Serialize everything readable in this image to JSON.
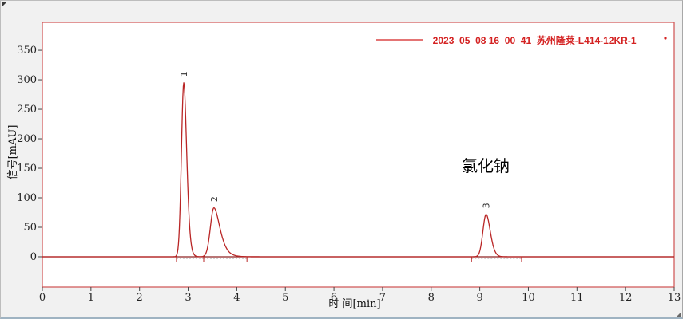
{
  "window": {
    "background": "#f1f1f1"
  },
  "chart_data": {
    "type": "line",
    "title": "",
    "xlabel": "时 间[min]",
    "ylabel": "信号[mAU]",
    "xlim": [
      0,
      13
    ],
    "ylim": [
      -51.4,
      397.4
    ],
    "grid": false,
    "x_ticks": [
      0,
      1,
      2,
      3,
      4,
      5,
      6,
      7,
      8,
      9,
      10,
      11,
      12,
      13
    ],
    "y_ticks": [
      0,
      50,
      100,
      150,
      200,
      250,
      300,
      350
    ],
    "legend": {
      "position": "top-right",
      "label": "_2023_05_08 16_00_41_苏州隆莱-L414-12KR-1"
    },
    "annotation": {
      "text": "氯化钠"
    },
    "peaks": [
      {
        "label": "1",
        "rt_min": 2.91,
        "height_mau": 295,
        "sigma_l": 0.048,
        "sigma_r": 0.055,
        "tail": 0.08
      },
      {
        "label": "2",
        "rt_min": 3.53,
        "height_mau": 83,
        "sigma_l": 0.072,
        "sigma_r": 0.105,
        "tail": 0.13
      },
      {
        "label": "3",
        "rt_min": 9.13,
        "height_mau": 72,
        "sigma_l": 0.065,
        "sigma_r": 0.08,
        "tail": 0.06
      }
    ],
    "integration_marks_min": [
      {
        "start": 2.76,
        "end": 3.32
      },
      {
        "start": 3.32,
        "end": 4.21
      },
      {
        "start": 8.83,
        "end": 9.86
      }
    ],
    "colors": {
      "series": "#b92525",
      "frame": "#cf5050",
      "zero_line": "#8f2323",
      "legend_text": "#d42222",
      "integration_baseline": "#a6a6a6",
      "plot_background": "#ffffff"
    }
  }
}
